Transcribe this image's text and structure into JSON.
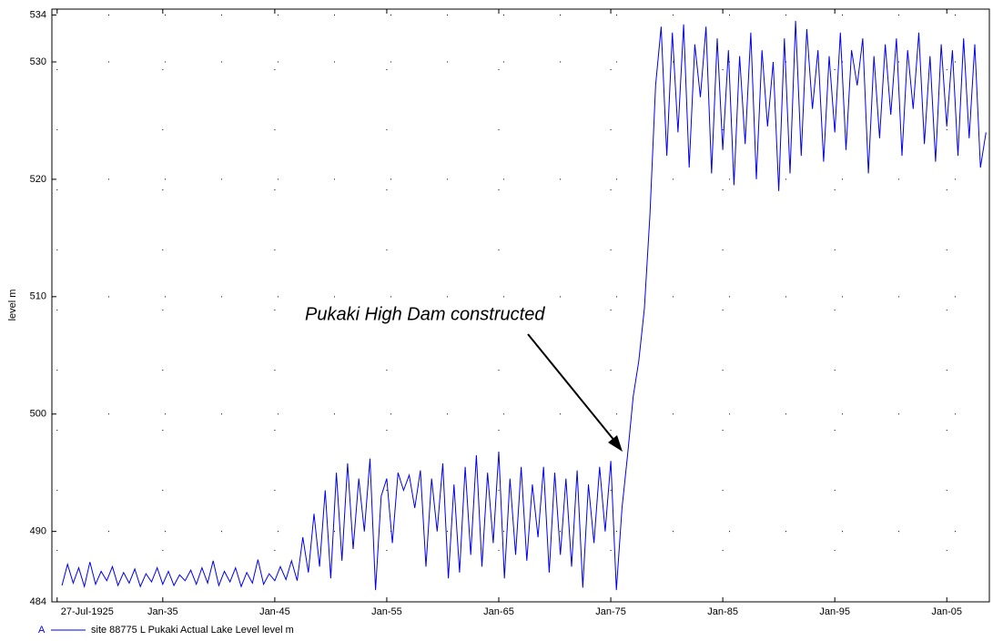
{
  "chart_data": {
    "type": "line",
    "y_label": "level m",
    "annotation": "Pukaki High Dam constructed",
    "legend_marker": "A",
    "xlim": [
      1925.1,
      2008.8
    ],
    "ylim": [
      484,
      534.5
    ],
    "xticks": [
      {
        "value": 1925.57,
        "label": "27-Jul-1925"
      },
      {
        "value": 1935,
        "label": "Jan-35"
      },
      {
        "value": 1945,
        "label": "Jan-45"
      },
      {
        "value": 1955,
        "label": "Jan-55"
      },
      {
        "value": 1965,
        "label": "Jan-65"
      },
      {
        "value": 1975,
        "label": "Jan-75"
      },
      {
        "value": 1985,
        "label": "Jan-85"
      },
      {
        "value": 1995,
        "label": "Jan-95"
      },
      {
        "value": 2005,
        "label": "Jan-05"
      }
    ],
    "yticks": [
      484,
      490,
      500,
      510,
      520,
      530,
      534
    ],
    "grid": true,
    "x": [
      1926.0,
      1926.5,
      1927.0,
      1927.5,
      1928.0,
      1928.5,
      1929.0,
      1929.5,
      1930.0,
      1930.5,
      1931.0,
      1931.5,
      1932.0,
      1932.5,
      1933.0,
      1933.5,
      1934.0,
      1934.5,
      1935.0,
      1935.5,
      1936.0,
      1936.5,
      1937.0,
      1937.5,
      1938.0,
      1938.5,
      1939.0,
      1939.5,
      1940.0,
      1940.5,
      1941.0,
      1941.5,
      1942.0,
      1942.5,
      1943.0,
      1943.5,
      1944.0,
      1944.5,
      1945.0,
      1945.5,
      1946.0,
      1946.5,
      1947.0,
      1947.5,
      1948.0,
      1948.5,
      1949.0,
      1949.5,
      1950.0,
      1950.5,
      1951.0,
      1951.5,
      1952.0,
      1952.5,
      1953.0,
      1953.5,
      1954.0,
      1954.5,
      1955.0,
      1955.5,
      1956.0,
      1956.5,
      1957.0,
      1957.5,
      1958.0,
      1958.5,
      1959.0,
      1959.5,
      1960.0,
      1960.5,
      1961.0,
      1961.5,
      1962.0,
      1962.5,
      1963.0,
      1963.5,
      1964.0,
      1964.5,
      1965.0,
      1965.5,
      1966.0,
      1966.5,
      1967.0,
      1967.5,
      1968.0,
      1968.5,
      1969.0,
      1969.5,
      1970.0,
      1970.5,
      1971.0,
      1971.5,
      1972.0,
      1972.5,
      1973.0,
      1973.5,
      1974.0,
      1974.5,
      1975.0,
      1975.5,
      1976.0,
      1976.5,
      1977.0,
      1977.5,
      1978.0,
      1978.5,
      1979.0,
      1979.5,
      1980.0,
      1980.5,
      1981.0,
      1981.5,
      1982.0,
      1982.5,
      1983.0,
      1983.5,
      1984.0,
      1984.5,
      1985.0,
      1985.5,
      1986.0,
      1986.5,
      1987.0,
      1987.5,
      1988.0,
      1988.5,
      1989.0,
      1989.5,
      1990.0,
      1990.5,
      1991.0,
      1991.5,
      1992.0,
      1992.5,
      1993.0,
      1993.5,
      1994.0,
      1994.5,
      1995.0,
      1995.5,
      1996.0,
      1996.5,
      1997.0,
      1997.5,
      1998.0,
      1998.5,
      1999.0,
      1999.5,
      2000.0,
      2000.5,
      2001.0,
      2001.5,
      2002.0,
      2002.5,
      2003.0,
      2003.5,
      2004.0,
      2004.5,
      2005.0,
      2005.5,
      2006.0,
      2006.5,
      2007.0,
      2007.5,
      2008.0,
      2008.5
    ],
    "series": [
      {
        "name": "site 88775 L Pukaki Actual Lake Level   level m",
        "color": "#0000ee",
        "values": [
          485.4,
          487.2,
          485.6,
          486.9,
          485.3,
          487.4,
          485.5,
          486.6,
          485.8,
          487.0,
          485.4,
          486.5,
          485.6,
          486.8,
          485.3,
          486.4,
          485.7,
          486.9,
          485.5,
          486.6,
          485.4,
          486.3,
          485.8,
          486.7,
          485.5,
          486.9,
          485.6,
          487.5,
          485.4,
          486.6,
          485.7,
          486.9,
          485.3,
          486.5,
          485.6,
          487.6,
          485.5,
          486.4,
          485.8,
          487.0,
          485.9,
          487.5,
          485.8,
          489.5,
          486.5,
          491.5,
          487.0,
          493.5,
          486.0,
          495.0,
          487.5,
          495.8,
          488.5,
          494.5,
          490.0,
          496.2,
          485.0,
          493.0,
          494.5,
          489.0,
          495.0,
          493.5,
          494.8,
          492.0,
          495.2,
          487.0,
          494.5,
          490.0,
          495.8,
          486.0,
          494.0,
          486.5,
          495.5,
          488.0,
          496.5,
          487.0,
          495.0,
          489.0,
          496.8,
          486.0,
          494.5,
          488.0,
          495.5,
          487.5,
          494.0,
          489.5,
          495.5,
          486.5,
          495.0,
          488.0,
          494.5,
          487.0,
          495.2,
          485.2,
          494.0,
          489.0,
          495.5,
          490.0,
          496.0,
          485.0,
          492.0,
          496.5,
          501.5,
          504.5,
          509.0,
          517.0,
          528.0,
          533.0,
          522.0,
          532.5,
          524.0,
          533.2,
          521.0,
          531.5,
          527.0,
          533.0,
          520.5,
          532.0,
          522.5,
          531.0,
          519.5,
          530.5,
          523.0,
          532.5,
          520.0,
          531.0,
          524.5,
          530.0,
          519.0,
          532.0,
          520.5,
          533.5,
          522.0,
          532.8,
          526.0,
          531.0,
          521.5,
          530.5,
          524.0,
          532.5,
          522.5,
          531.0,
          528.0,
          532.0,
          520.5,
          530.5,
          523.5,
          531.5,
          525.5,
          532.0,
          522.0,
          531.0,
          526.0,
          532.5,
          523.0,
          530.5,
          521.5,
          531.5,
          524.5,
          531.0,
          522.0,
          532.0,
          523.5,
          531.5,
          521.0,
          524.0
        ]
      }
    ]
  }
}
